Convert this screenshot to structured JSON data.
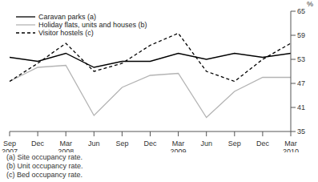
{
  "chart_data": {
    "type": "line",
    "y_label": "%",
    "categories": [
      "Sep 2007",
      "Dec",
      "Mar 2008",
      "Jun",
      "Sep",
      "Dec",
      "Mar 2009",
      "Jun",
      "Sep",
      "Dec",
      "Mar 2010"
    ],
    "series": [
      {
        "name": "Caravan parks (a)",
        "color": "#000000",
        "line_style": "solid",
        "values": [
          53.5,
          52.5,
          54.5,
          51,
          52.5,
          52.5,
          54.5,
          53,
          54.5,
          53.5,
          54.5
        ]
      },
      {
        "name": "Holiday flats, units and houses (b)",
        "color": "#b4b4b4",
        "line_style": "solid",
        "values": [
          47.5,
          51,
          51.5,
          39,
          46,
          49,
          49.5,
          38.5,
          45,
          48.5,
          48.5
        ]
      },
      {
        "name": "Visitor hostels (c)",
        "color": "#000000",
        "line_style": "dashed",
        "values": [
          47.5,
          52,
          57,
          50,
          52,
          56.5,
          59.5,
          50,
          47.5,
          53,
          57
        ]
      }
    ],
    "ylim": [
      35,
      65
    ],
    "yticks": [
      35,
      41,
      47,
      53,
      59,
      65
    ],
    "grid": false,
    "legend": "top-left",
    "annotations": [
      "(a) Site occupancy rate.",
      "(b) Unit occupancy rate.",
      "(c) Bed occupancy rate."
    ]
  }
}
